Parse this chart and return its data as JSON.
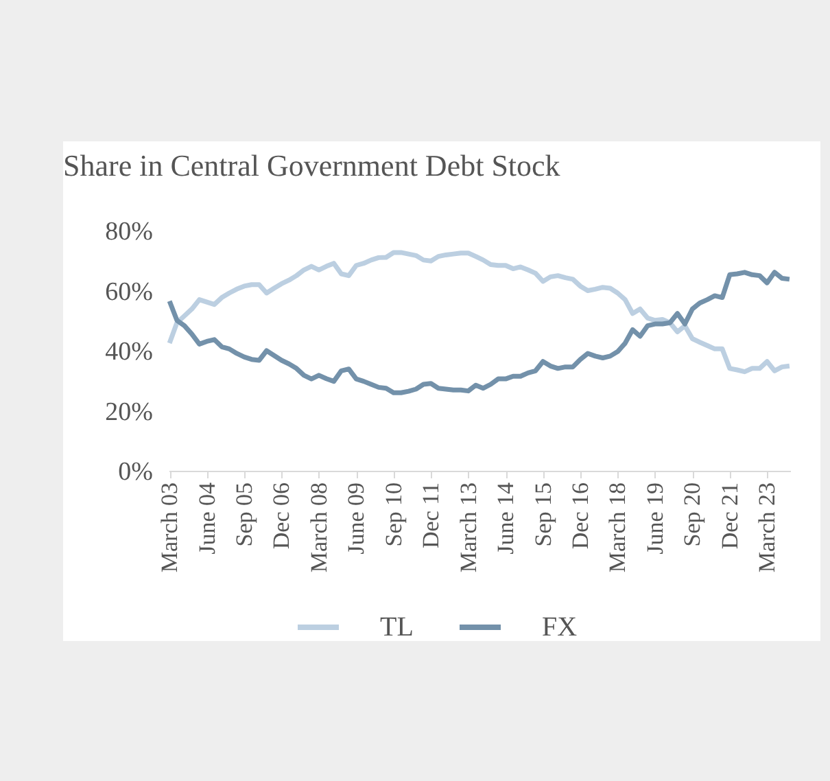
{
  "chart_data": {
    "type": "line",
    "title": "Share in Central Government Debt Stock",
    "categories": [
      "March 03",
      null,
      null,
      null,
      null,
      "June 04",
      null,
      null,
      null,
      null,
      "Sep 05",
      null,
      null,
      null,
      null,
      "Dec 06",
      null,
      null,
      null,
      null,
      "March 08",
      null,
      null,
      null,
      null,
      "June 09",
      null,
      null,
      null,
      null,
      "Sep 10",
      null,
      null,
      null,
      null,
      "Dec 11",
      null,
      null,
      null,
      null,
      "March 13",
      null,
      null,
      null,
      null,
      "June 14",
      null,
      null,
      null,
      null,
      "Sep 15",
      null,
      null,
      null,
      null,
      "Dec 16",
      null,
      null,
      null,
      null,
      "March 18",
      null,
      null,
      null,
      null,
      "June 19",
      null,
      null,
      null,
      null,
      "Sep 20",
      null,
      null,
      null,
      null,
      "Dec 21",
      null,
      null,
      null,
      null,
      "March 23",
      null,
      null,
      null
    ],
    "series": [
      {
        "name": "TL",
        "color": "#bccfe1",
        "values": [
          42.5,
          49.3,
          51.6,
          53.9,
          57,
          56.2,
          55.4,
          57.7,
          59.2,
          60.5,
          61.5,
          62,
          62,
          59.2,
          60.8,
          62.3,
          63.5,
          65,
          66.9,
          68.1,
          66.9,
          68.1,
          69.1,
          65.6,
          65,
          68.4,
          69.1,
          70.2,
          71,
          71.1,
          72.7,
          72.7,
          72.2,
          71.7,
          70.2,
          69.9,
          71.4,
          71.9,
          72.2,
          72.5,
          72.5,
          71.4,
          70.2,
          68.7,
          68.4,
          68.4,
          67.3,
          67.9,
          66.9,
          65.8,
          63.1,
          64.6,
          65,
          64.3,
          63.8,
          61.5,
          60,
          60.5,
          61.1,
          60.8,
          59.2,
          57,
          52.4,
          53.9,
          50.9,
          50.1,
          50.4,
          49.3,
          46.3,
          48.3,
          44,
          42.8,
          41.7,
          40.6,
          40.6,
          34.1,
          33.6,
          33,
          34.1,
          34.1,
          36.4,
          33.3,
          34.6,
          34.9
        ]
      },
      {
        "name": "FX",
        "color": "#7391aa",
        "values": [
          56.5,
          50.1,
          48.3,
          45.5,
          42.2,
          43.1,
          43.7,
          41.3,
          40.6,
          39.1,
          37.9,
          37.1,
          36.8,
          40,
          38.4,
          36.8,
          35.6,
          34.1,
          31.8,
          30.6,
          31.8,
          30.7,
          29.8,
          33.3,
          33.9,
          30.6,
          29.8,
          28.8,
          27.8,
          27.5,
          26,
          26,
          26.5,
          27.2,
          28.8,
          29.1,
          27.5,
          27.2,
          26.9,
          26.9,
          26.6,
          28.5,
          27.5,
          28.8,
          30.6,
          30.6,
          31.5,
          31.5,
          32.6,
          33.3,
          36.4,
          34.9,
          34.1,
          34.6,
          34.6,
          37.1,
          39.1,
          38.2,
          37.6,
          38.2,
          39.7,
          42.5,
          47,
          44.8,
          48.3,
          48.9,
          48.9,
          49.3,
          52.4,
          48.9,
          53.9,
          55.9,
          57,
          58.3,
          57.7,
          65.3,
          65.6,
          66.1,
          65.3,
          65,
          62.6,
          66.1,
          64.1,
          63.8
        ]
      }
    ],
    "ylim": [
      0,
      80
    ],
    "yticks": [
      {
        "value": 0,
        "label": "0%"
      },
      {
        "value": 20,
        "label": "20%"
      },
      {
        "value": 40,
        "label": "40%"
      },
      {
        "value": 60,
        "label": "60%"
      },
      {
        "value": 80,
        "label": "80%"
      }
    ],
    "legend": "bottom",
    "line_style": "solid",
    "marker": "none"
  }
}
